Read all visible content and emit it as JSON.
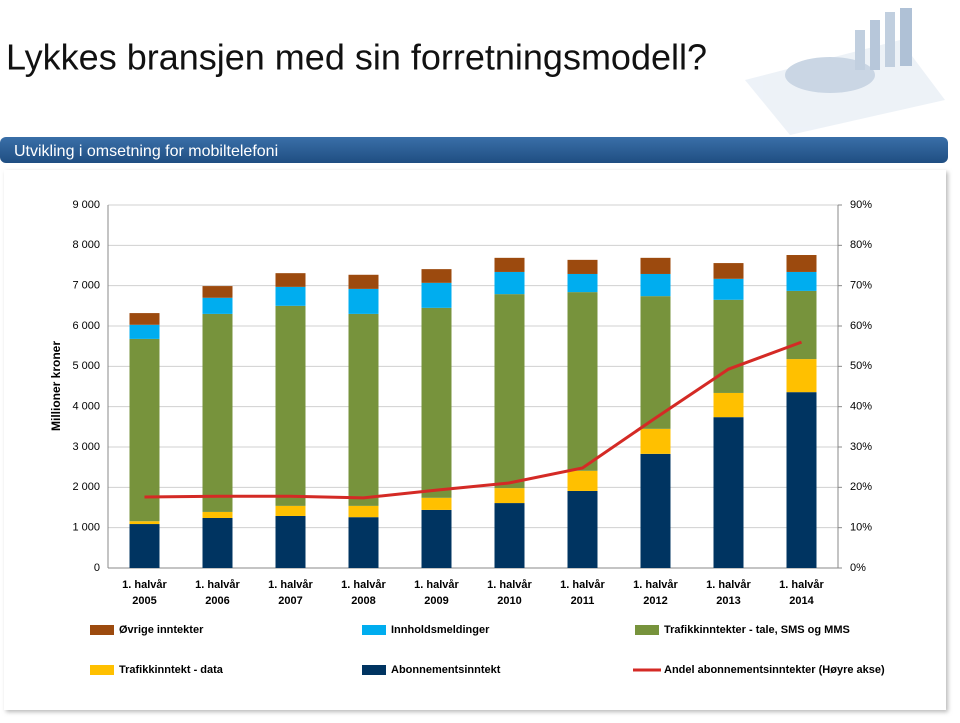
{
  "slide": {
    "title": "Lykkes bransjen med sin forretningsmodell?",
    "banner": "Utvikling i omsetning for mobiltelefoni"
  },
  "chart_data": {
    "type": "stacked_bar_line",
    "y_label": "Millioner kroner",
    "categories": [
      [
        "1. halvår",
        "2005"
      ],
      [
        "1. halvår",
        "2006"
      ],
      [
        "1. halvår",
        "2007"
      ],
      [
        "1. halvår",
        "2008"
      ],
      [
        "1. halvår",
        "2009"
      ],
      [
        "1. halvår",
        "2010"
      ],
      [
        "1. halvår",
        "2011"
      ],
      [
        "1. halvår",
        "2012"
      ],
      [
        "1. halvår",
        "2013"
      ],
      [
        "1. halvår",
        "2014"
      ]
    ],
    "ylim": [
      0,
      9000
    ],
    "yticks": [
      0,
      {
        "value": 1000,
        "label": "1 000"
      },
      {
        "value": 2000,
        "label": "2 000"
      },
      {
        "value": 3000,
        "label": "3 000"
      },
      {
        "value": 4000,
        "label": "4 000"
      },
      {
        "value": 5000,
        "label": "5 000"
      },
      {
        "value": 6000,
        "label": "6 000"
      },
      {
        "value": 7000,
        "label": "7 000"
      },
      {
        "value": 8000,
        "label": "8 000"
      },
      {
        "value": 9000,
        "label": "9 000"
      }
    ],
    "y2lim": [
      0,
      90
    ],
    "y2ticks": [
      {
        "value": 0,
        "label": "0%"
      },
      {
        "value": 10,
        "label": "10%"
      },
      {
        "value": 20,
        "label": "20%"
      },
      {
        "value": 30,
        "label": "30%"
      },
      {
        "value": 40,
        "label": "40%"
      },
      {
        "value": 50,
        "label": "50%"
      },
      {
        "value": 60,
        "label": "60%"
      },
      {
        "value": 70,
        "label": "70%"
      },
      {
        "value": 80,
        "label": "80%"
      },
      {
        "value": 90,
        "label": "90%"
      }
    ],
    "grid": true,
    "series": [
      {
        "name": "Abonnementsinntekt",
        "color": "#003461",
        "values": [
          1090,
          1240,
          1290,
          1260,
          1440,
          1610,
          1910,
          2830,
          3740,
          4360
        ]
      },
      {
        "name": "Trafikkinntekt - data",
        "color": "#ffc000",
        "values": [
          70,
          150,
          250,
          280,
          300,
          370,
          500,
          620,
          600,
          820
        ]
      },
      {
        "name": "Trafikkinntekter - tale, SMS og MMS",
        "color": "#77933c",
        "values": [
          4520,
          4910,
          4960,
          4760,
          4710,
          4810,
          4430,
          3290,
          2310,
          1690
        ]
      },
      {
        "name": "Innholdsmeldinger",
        "color": "#00adef",
        "values": [
          350,
          400,
          470,
          620,
          620,
          550,
          450,
          550,
          520,
          470
        ]
      },
      {
        "name": "Øvrige inntekter",
        "color": "#9c4a0e",
        "values": [
          290,
          290,
          340,
          350,
          340,
          350,
          350,
          400,
          390,
          420
        ]
      },
      {
        "name": "Andel abonnementsinntekter (Høyre akse)",
        "color": "#d42a25",
        "axis": "y2",
        "kind": "line",
        "values": [
          17.6,
          17.8,
          17.8,
          17.4,
          19.3,
          21.1,
          24.8,
          37.2,
          49.3,
          56.0
        ]
      }
    ]
  }
}
